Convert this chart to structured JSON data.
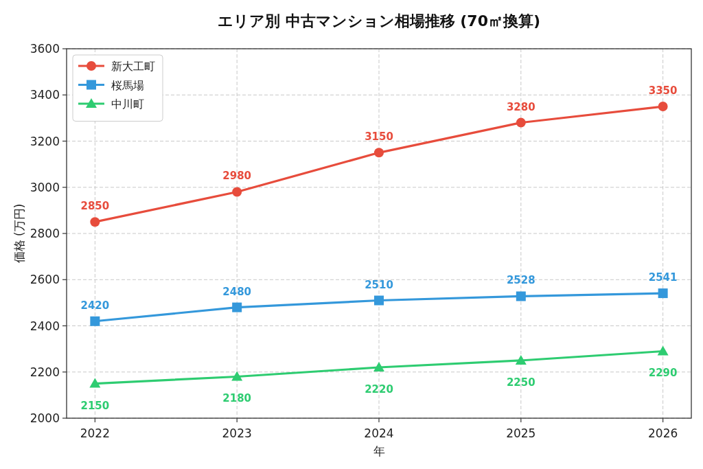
{
  "chart_data": {
    "type": "line",
    "title": "エリア別 中古マンション相場推移 (70㎡換算)",
    "xlabel": "年",
    "ylabel": "価格 (万円)",
    "x": [
      2022,
      2023,
      2024,
      2025,
      2026
    ],
    "series": [
      {
        "name": "新大工町",
        "color": "#e74c3c",
        "marker": "circle",
        "values": [
          2850,
          2980,
          3150,
          3280,
          3350
        ]
      },
      {
        "name": "桜馬場",
        "color": "#3498db",
        "marker": "square",
        "values": [
          2420,
          2480,
          2510,
          2528,
          2541
        ]
      },
      {
        "name": "中川町",
        "color": "#2ecc71",
        "marker": "triangle",
        "values": [
          2150,
          2180,
          2220,
          2250,
          2290
        ]
      }
    ],
    "xlim": [
      2021.8,
      2026.2
    ],
    "xticks": [
      2022,
      2023,
      2024,
      2025,
      2026
    ],
    "ylim": [
      2000,
      3600
    ],
    "yticks": [
      2000,
      2200,
      2400,
      2600,
      2800,
      3000,
      3200,
      3400,
      3600
    ],
    "grid": true,
    "legend": "top left",
    "data_labels": true,
    "line_style": "solid"
  }
}
